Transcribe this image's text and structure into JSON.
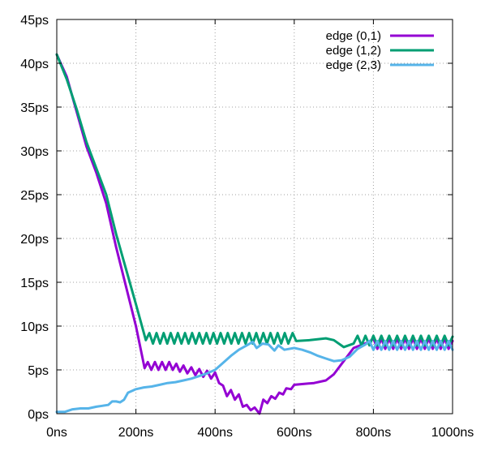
{
  "chart_data": {
    "type": "line",
    "title": "",
    "xlabel": "",
    "ylabel": "",
    "xlim": [
      0,
      1000
    ],
    "ylim": [
      0,
      45
    ],
    "x_ticks": [
      {
        "value": 0,
        "label": "0ns"
      },
      {
        "value": 200,
        "label": "200ns"
      },
      {
        "value": 400,
        "label": "400ns"
      },
      {
        "value": 600,
        "label": "600ns"
      },
      {
        "value": 800,
        "label": "800ns"
      },
      {
        "value": 1000,
        "label": "1000ns"
      }
    ],
    "y_ticks": [
      {
        "value": 0,
        "label": "0ps"
      },
      {
        "value": 5,
        "label": "5ps"
      },
      {
        "value": 10,
        "label": "10ps"
      },
      {
        "value": 15,
        "label": "15ps"
      },
      {
        "value": 20,
        "label": "20ps"
      },
      {
        "value": 25,
        "label": "25ps"
      },
      {
        "value": 30,
        "label": "30ps"
      },
      {
        "value": 35,
        "label": "35ps"
      },
      {
        "value": 40,
        "label": "40ps"
      },
      {
        "value": 45,
        "label": "45ps"
      }
    ],
    "grid": true,
    "legend_position": "top-right",
    "series": [
      {
        "name": "edge (0,1)",
        "color": "#9400d3",
        "points": [
          [
            0,
            41
          ],
          [
            25,
            38.5
          ],
          [
            50,
            34.5
          ],
          [
            75,
            30.5
          ],
          [
            100,
            27.5
          ],
          [
            125,
            24
          ],
          [
            150,
            19
          ],
          [
            175,
            14.5
          ],
          [
            200,
            10
          ],
          [
            222,
            5.2
          ],
          [
            230,
            5.9
          ],
          [
            239,
            5.0
          ],
          [
            248,
            5.9
          ],
          [
            257,
            5.0
          ],
          [
            266,
            5.9
          ],
          [
            275,
            5.0
          ],
          [
            284,
            5.9
          ],
          [
            293,
            5.0
          ],
          [
            302,
            5.7
          ],
          [
            311,
            4.8
          ],
          [
            320,
            5.5
          ],
          [
            330,
            4.6
          ],
          [
            340,
            5.3
          ],
          [
            350,
            4.4
          ],
          [
            360,
            5.1
          ],
          [
            370,
            4.2
          ],
          [
            380,
            4.9
          ],
          [
            390,
            4.0
          ],
          [
            400,
            4.7
          ],
          [
            410,
            3.5
          ],
          [
            420,
            3.2
          ],
          [
            430,
            2.0
          ],
          [
            440,
            2.7
          ],
          [
            450,
            1.6
          ],
          [
            460,
            2.2
          ],
          [
            470,
            0.8
          ],
          [
            480,
            1.0
          ],
          [
            490,
            0.4
          ],
          [
            500,
            0.7
          ],
          [
            512,
            0.0
          ],
          [
            522,
            1.6
          ],
          [
            532,
            1.2
          ],
          [
            542,
            2.0
          ],
          [
            552,
            1.7
          ],
          [
            562,
            2.4
          ],
          [
            572,
            2.2
          ],
          [
            580,
            2.9
          ],
          [
            592,
            2.8
          ],
          [
            600,
            3.3
          ],
          [
            650,
            3.5
          ],
          [
            680,
            3.8
          ],
          [
            700,
            4.5
          ],
          [
            725,
            6.0
          ],
          [
            750,
            7.5
          ],
          [
            790,
            8.2
          ],
          [
            800,
            8.6
          ],
          [
            810,
            7.4
          ],
          [
            820,
            8.6
          ],
          [
            830,
            7.4
          ],
          [
            840,
            8.6
          ],
          [
            850,
            7.4
          ],
          [
            860,
            8.6
          ],
          [
            870,
            7.4
          ],
          [
            880,
            8.6
          ],
          [
            890,
            7.4
          ],
          [
            900,
            8.6
          ],
          [
            910,
            7.4
          ],
          [
            920,
            8.6
          ],
          [
            930,
            7.4
          ],
          [
            940,
            8.6
          ],
          [
            950,
            7.4
          ],
          [
            960,
            8.6
          ],
          [
            970,
            7.4
          ],
          [
            980,
            8.6
          ],
          [
            990,
            7.4
          ],
          [
            1000,
            8.3
          ]
        ]
      },
      {
        "name": "edge (1,2)",
        "color": "#009e73",
        "points": [
          [
            0,
            41
          ],
          [
            25,
            38.2
          ],
          [
            50,
            34.8
          ],
          [
            75,
            31
          ],
          [
            100,
            28
          ],
          [
            125,
            25
          ],
          [
            150,
            20.5
          ],
          [
            175,
            16.5
          ],
          [
            200,
            12.5
          ],
          [
            225,
            8.4
          ],
          [
            234,
            9.2
          ],
          [
            243,
            8.0
          ],
          [
            252,
            9.2
          ],
          [
            261,
            8.0
          ],
          [
            270,
            9.2
          ],
          [
            279,
            8.0
          ],
          [
            288,
            9.2
          ],
          [
            297,
            8.0
          ],
          [
            306,
            9.2
          ],
          [
            315,
            8.0
          ],
          [
            324,
            9.2
          ],
          [
            333,
            8.0
          ],
          [
            342,
            9.2
          ],
          [
            351,
            8.0
          ],
          [
            360,
            9.2
          ],
          [
            369,
            8.0
          ],
          [
            378,
            9.2
          ],
          [
            387,
            8.0
          ],
          [
            396,
            9.2
          ],
          [
            405,
            8.0
          ],
          [
            414,
            9.2
          ],
          [
            423,
            8.0
          ],
          [
            432,
            9.2
          ],
          [
            441,
            8.0
          ],
          [
            450,
            9.2
          ],
          [
            459,
            8.0
          ],
          [
            468,
            9.2
          ],
          [
            477,
            8.0
          ],
          [
            486,
            9.2
          ],
          [
            495,
            8.0
          ],
          [
            504,
            9.2
          ],
          [
            513,
            8.0
          ],
          [
            522,
            9.2
          ],
          [
            531,
            8.0
          ],
          [
            540,
            9.2
          ],
          [
            549,
            8.0
          ],
          [
            558,
            9.2
          ],
          [
            567,
            8.0
          ],
          [
            576,
            9.2
          ],
          [
            585,
            8.0
          ],
          [
            596,
            9.2
          ],
          [
            605,
            8.3
          ],
          [
            640,
            8.4
          ],
          [
            680,
            8.6
          ],
          [
            700,
            8.4
          ],
          [
            725,
            7.6
          ],
          [
            750,
            8.0
          ],
          [
            760,
            8.9
          ],
          [
            770,
            7.8
          ],
          [
            780,
            8.9
          ],
          [
            790,
            7.8
          ],
          [
            800,
            8.9
          ],
          [
            810,
            7.8
          ],
          [
            820,
            8.9
          ],
          [
            830,
            7.8
          ],
          [
            840,
            8.9
          ],
          [
            850,
            7.8
          ],
          [
            860,
            8.9
          ],
          [
            870,
            7.8
          ],
          [
            880,
            8.9
          ],
          [
            890,
            7.8
          ],
          [
            900,
            8.9
          ],
          [
            910,
            7.8
          ],
          [
            920,
            8.9
          ],
          [
            930,
            7.8
          ],
          [
            940,
            8.9
          ],
          [
            950,
            7.8
          ],
          [
            960,
            8.9
          ],
          [
            970,
            7.8
          ],
          [
            980,
            8.9
          ],
          [
            990,
            7.8
          ],
          [
            1000,
            8.8
          ]
        ]
      },
      {
        "name": "edge (2,3)",
        "color": "#56b4e9",
        "points": [
          [
            0,
            0.2
          ],
          [
            20,
            0.2
          ],
          [
            40,
            0.5
          ],
          [
            60,
            0.6
          ],
          [
            80,
            0.6
          ],
          [
            100,
            0.8
          ],
          [
            115,
            0.9
          ],
          [
            130,
            1.0
          ],
          [
            140,
            1.4
          ],
          [
            150,
            1.4
          ],
          [
            160,
            1.3
          ],
          [
            170,
            1.6
          ],
          [
            180,
            2.4
          ],
          [
            200,
            2.8
          ],
          [
            220,
            3.0
          ],
          [
            240,
            3.1
          ],
          [
            260,
            3.3
          ],
          [
            280,
            3.5
          ],
          [
            300,
            3.6
          ],
          [
            320,
            3.8
          ],
          [
            340,
            4.0
          ],
          [
            360,
            4.3
          ],
          [
            380,
            4.6
          ],
          [
            400,
            5.0
          ],
          [
            420,
            5.8
          ],
          [
            440,
            6.6
          ],
          [
            460,
            7.3
          ],
          [
            480,
            7.8
          ],
          [
            495,
            8.2
          ],
          [
            505,
            7.5
          ],
          [
            520,
            8.0
          ],
          [
            535,
            7.9
          ],
          [
            550,
            7.2
          ],
          [
            560,
            7.8
          ],
          [
            575,
            7.3
          ],
          [
            600,
            7.5
          ],
          [
            620,
            7.3
          ],
          [
            640,
            7.0
          ],
          [
            660,
            6.6
          ],
          [
            680,
            6.3
          ],
          [
            700,
            6.0
          ],
          [
            720,
            6.1
          ],
          [
            740,
            6.5
          ],
          [
            760,
            7.4
          ],
          [
            780,
            7.9
          ],
          [
            790,
            8.3
          ],
          [
            800,
            7.3
          ],
          [
            810,
            8.3
          ],
          [
            820,
            7.3
          ],
          [
            830,
            8.3
          ],
          [
            840,
            7.3
          ],
          [
            850,
            8.3
          ],
          [
            860,
            7.3
          ],
          [
            870,
            8.3
          ],
          [
            880,
            7.3
          ],
          [
            890,
            8.3
          ],
          [
            900,
            7.3
          ],
          [
            910,
            8.3
          ],
          [
            920,
            7.3
          ],
          [
            930,
            8.3
          ],
          [
            940,
            7.3
          ],
          [
            950,
            8.3
          ],
          [
            960,
            7.3
          ],
          [
            970,
            8.3
          ],
          [
            980,
            7.3
          ],
          [
            990,
            8.3
          ],
          [
            1000,
            7.3
          ]
        ]
      }
    ]
  }
}
